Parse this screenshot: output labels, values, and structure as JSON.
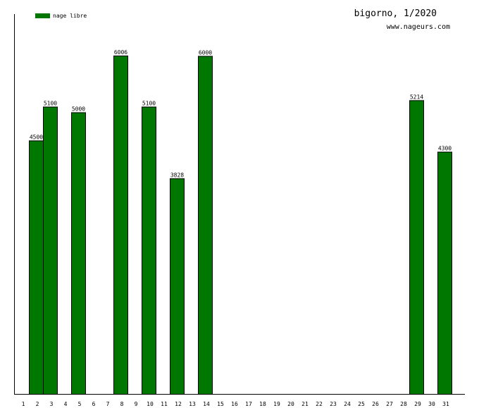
{
  "chart_data": {
    "type": "bar",
    "title": "bigorno, 1/2020",
    "subtitle": "www.nageurs.com",
    "legend": {
      "label": "nage libre",
      "position": "top-left",
      "color": "#007700"
    },
    "categories": [
      "1",
      "2",
      "3",
      "4",
      "5",
      "6",
      "7",
      "8",
      "9",
      "10",
      "11",
      "12",
      "13",
      "14",
      "15",
      "16",
      "17",
      "18",
      "19",
      "20",
      "21",
      "22",
      "23",
      "24",
      "25",
      "26",
      "27",
      "28",
      "29",
      "30",
      "31"
    ],
    "series": [
      {
        "name": "nage libre",
        "color": "#007700",
        "values": [
          0,
          4500,
          5100,
          0,
          5000,
          0,
          0,
          6006,
          0,
          5100,
          0,
          3828,
          0,
          6000,
          0,
          0,
          0,
          0,
          0,
          0,
          0,
          0,
          0,
          0,
          0,
          0,
          0,
          0,
          5214,
          0,
          4300
        ]
      }
    ],
    "ylim": [
      0,
      6006
    ],
    "grid": false
  }
}
